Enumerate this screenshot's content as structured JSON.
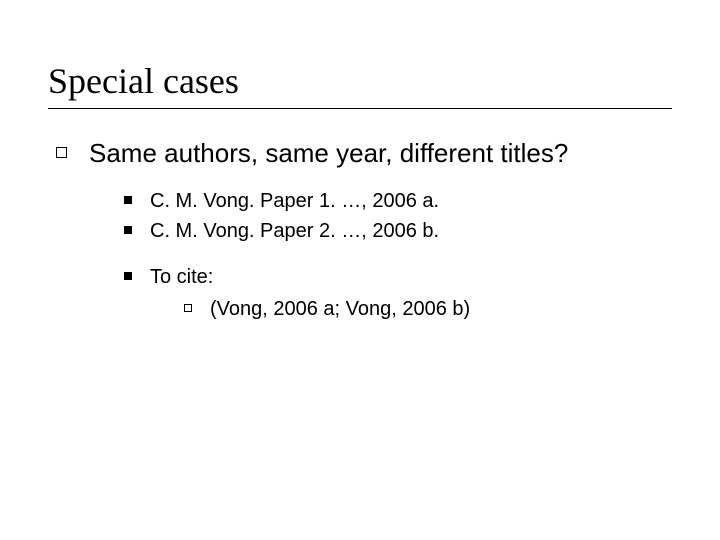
{
  "slide": {
    "title": "Special cases",
    "background_color": "#ffffff",
    "text_color": "#000000",
    "title_font": "Times New Roman",
    "title_fontsize": 36,
    "body_font": "Verdana",
    "body_fontsize_l1": 26,
    "body_fontsize_l2": 20,
    "body_fontsize_l3": 20,
    "l1": {
      "bullet_style": "hollow-square",
      "text": "Same authors, same year, different titles?"
    },
    "l2": {
      "bullet_style": "filled-square",
      "items": [
        "C. M. Vong. Paper 1. …, 2006 a.",
        "C. M. Vong. Paper 2. …, 2006 b.",
        "To cite:"
      ]
    },
    "l3": {
      "bullet_style": "hollow-square",
      "text": "(Vong, 2006 a; Vong, 2006 b)"
    }
  }
}
